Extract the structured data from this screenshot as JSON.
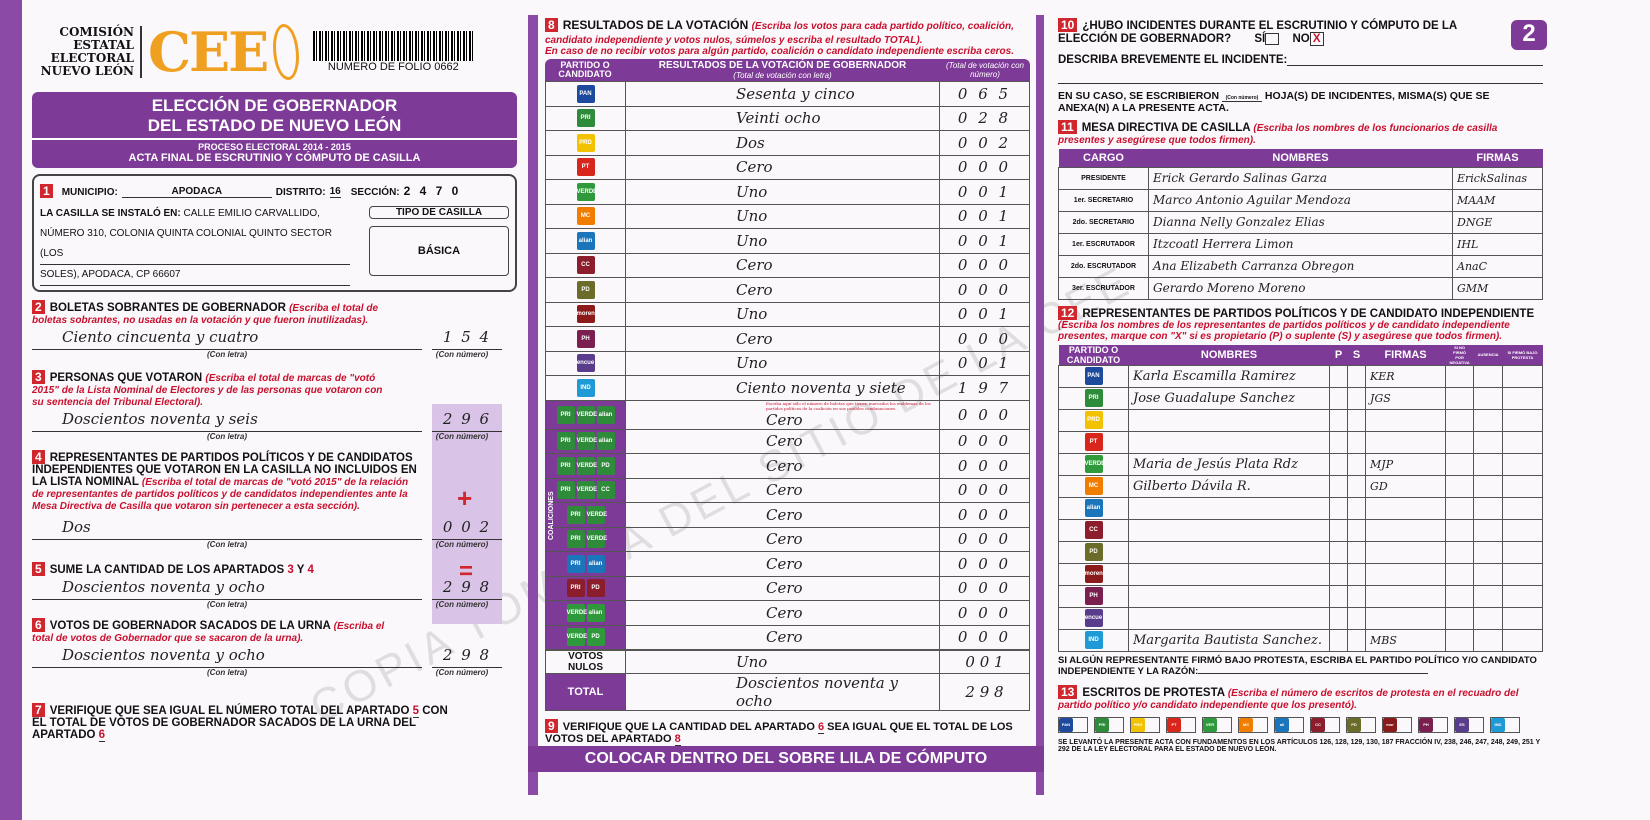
{
  "header": {
    "org": "COMISIÓN ESTATAL ELECTORAL NUEVO LEÓN",
    "logo": "CEE",
    "folio": "NUMERO DE FOLIO 0662",
    "title1": "ELECCIÓN DE GOBERNADOR",
    "title2": "DEL ESTADO DE NUEVO LEÓN",
    "process": "PROCESO ELECTORAL 2014 - 2015",
    "acta": "ACTA FINAL DE ESCRUTINIO Y CÓMPUTO DE CASILLA",
    "page_number": "2"
  },
  "s1": {
    "n": "1",
    "municipio_label": "MUNICIPIO:",
    "municipio": "APODACA",
    "distrito_label": "DISTRITO:",
    "distrito": "16",
    "seccion_label": "SECCIÓN:",
    "seccion": "2 4 7 0",
    "instalo_label": "LA CASILLA SE INSTALÓ EN:",
    "address1": "CALLE EMILIO CARVALLIDO,",
    "address2": "NÚMERO 310, COLONIA QUINTA COLONIAL QUINTO SECTOR (LOS",
    "address3": "SOLES), APODACA, CP 66607",
    "tipo_label": "TIPO DE CASILLA",
    "tipo": "BÁSICA"
  },
  "labels": {
    "con_letra": "(Con letra)",
    "con_numero": "(Con número)"
  },
  "s2": {
    "n": "2",
    "title": "BOLETAS SOBRANTES DE GOBERNADOR",
    "hint": "(Escriba el total de boletas sobrantes, no usadas en la votación y que fueron inutilizadas).",
    "letra": "Ciento cincuenta y cuatro",
    "numero": "1 5 4"
  },
  "s3": {
    "n": "3",
    "title": "PERSONAS QUE VOTARON",
    "hint": "(Escriba el total de marcas de \"votó 2015\" de la Lista Nominal de Electores y de las personas que votaron con su sentencia del Tribunal Electoral).",
    "letra": "Doscientos noventa y seis",
    "numero": "2 9 6"
  },
  "s4": {
    "n": "4",
    "title": "REPRESENTANTES DE PARTIDOS POLÍTICOS Y DE CANDIDATOS INDEPENDIENTES QUE VOTARON EN LA CASILLA NO INCLUIDOS EN LA LISTA NOMINAL",
    "hint": "(Escriba el total de marcas de \"votó 2015\" de la relación de representantes de partidos políticos y de candidatos independientes ante la Mesa Directiva de Casilla que votaron sin pertenecer a esta sección).",
    "letra": "Dos",
    "numero": "0 0 2",
    "plus": "+"
  },
  "s5": {
    "n": "5",
    "title": "SUME LA CANTIDAD DE LOS APARTADOS",
    "a": "3",
    "y": "Y",
    "b": "4",
    "letra": "Doscientos noventa y ocho",
    "numero": "2 9 8",
    "eq": "="
  },
  "s6": {
    "n": "6",
    "title": "VOTOS DE GOBERNADOR SACADOS DE LA URNA",
    "hint": "(Escriba el total de votos de Gobernador que se sacaron de la urna).",
    "letra": "Doscientos noventa y ocho",
    "numero": "2 9 8"
  },
  "s7": {
    "n": "7",
    "text": "VERIFIQUE QUE SEA IGUAL EL NÚMERO TOTAL DEL APARTADO",
    "a": "5",
    "text2": "CON EL TOTAL DE VOTOS DE GOBERNADOR SACADOS DE LA URNA DEL APARTADO",
    "b": "6"
  },
  "s8": {
    "n": "8",
    "title": "RESULTADOS DE LA VOTACIÓN",
    "hint": "(Escriba los votos para cada partido político, coalición, candidato independiente y votos nulos, súmelos y escriba el resultado TOTAL).",
    "hint2": "En caso de no recibir votos para algún partido, coalición o candidato independiente escriba ceros.",
    "col1": "PARTIDO O CANDIDATO",
    "col2": "RESULTADOS DE LA VOTACIÓN DE GOBERNADOR",
    "col2b": "(Total de votación con letra)",
    "col3": "(Total de votación con número)",
    "coalition_note": "Escriba aquí sólo el número de boletas que tienen marcados los emblemas de los partidos políticos de la coalición en sus posibles combinaciones.",
    "coalitions_label": "COALICIONES",
    "rows": [
      {
        "party": "PAN",
        "color": "#1d4a9c",
        "letra": "Sesenta y cinco",
        "numero": "0 6 5"
      },
      {
        "party": "PRI",
        "color": "#2e8b3a",
        "letra": "Veinti ocho",
        "numero": "0 2 8"
      },
      {
        "party": "PRD",
        "color": "#f2c200",
        "letra": "Dos",
        "numero": "0 0 2"
      },
      {
        "party": "PT",
        "color": "#d8261c",
        "letra": "Cero",
        "numero": "0 0 0"
      },
      {
        "party": "VERDE",
        "color": "#2f9a3b",
        "letra": "Uno",
        "numero": "0 0 1"
      },
      {
        "party": "MC",
        "color": "#f07d00",
        "letra": "Uno",
        "numero": "0 0 1"
      },
      {
        "party": "alianza",
        "color": "#1b75bb",
        "letra": "Uno",
        "numero": "0 0 1"
      },
      {
        "party": "CC",
        "color": "#8b1d2c",
        "letra": "Cero",
        "numero": "0 0 0"
      },
      {
        "party": "PD",
        "color": "#6b6b2a",
        "letra": "Cero",
        "numero": "0 0 0"
      },
      {
        "party": "morena",
        "color": "#8b1a1a",
        "letra": "Uno",
        "numero": "0 0 1"
      },
      {
        "party": "PH",
        "color": "#7a1f4f",
        "letra": "Cero",
        "numero": "0 0 0"
      },
      {
        "party": "encuentro",
        "color": "#5a3c8c",
        "letra": "Uno",
        "numero": "0 0 1"
      },
      {
        "party": "IND",
        "color": "#1e9ad6",
        "letra": "Ciento noventa y siete",
        "numero": "1 9 7"
      },
      {
        "party": "PRI-VERDE-alianza",
        "color": "#2e8b3a",
        "letra": "Cero",
        "numero": "0 0 0",
        "coal": true
      },
      {
        "party": "PRI-VERDE-alianza",
        "color": "#2e8b3a",
        "letra": "Cero",
        "numero": "0 0 0",
        "coal": true
      },
      {
        "party": "PRI-VERDE-PD",
        "color": "#2e8b3a",
        "letra": "Cero",
        "numero": "0 0 0",
        "coal": true
      },
      {
        "party": "PRI-VERDE-CC",
        "color": "#2e8b3a",
        "letra": "Cero",
        "numero": "0 0 0",
        "coal": true
      },
      {
        "party": "PRI-VERDE",
        "color": "#2e8b3a",
        "letra": "Cero",
        "numero": "0 0 0",
        "coal": true
      },
      {
        "party": "PRI-VERDE",
        "color": "#2e8b3a",
        "letra": "Cero",
        "numero": "0 0 0",
        "coal": true
      },
      {
        "party": "PRI-alianza",
        "color": "#1b75bb",
        "letra": "Cero",
        "numero": "0 0 0",
        "coal": true
      },
      {
        "party": "PRI-PD",
        "color": "#8b1d2c",
        "letra": "Cero",
        "numero": "0 0 0",
        "coal": true
      },
      {
        "party": "VERDE-alianza",
        "color": "#2f9a3b",
        "letra": "Cero",
        "numero": "0 0 0",
        "coal": true
      },
      {
        "party": "VERDE-PD",
        "color": "#2f9a3b",
        "letra": "Cero",
        "numero": "0 0 0",
        "coal": true
      }
    ],
    "nulos_label": "VOTOS NULOS",
    "nulos_letra": "Uno",
    "nulos_numero": "0 0 1",
    "total_label": "TOTAL",
    "total_letra": "Doscientos noventa y ocho",
    "total_numero": "2 9 8"
  },
  "s9": {
    "n": "9",
    "text": "VERIFIQUE QUE LA CANTIDAD DEL APARTADO",
    "a": "6",
    "text2": "SEA IGUAL QUE EL TOTAL DE LOS VOTOS DEL APARTADO",
    "b": "8"
  },
  "footer": "COLOCAR DENTRO DEL SOBRE LILA DE CÓMPUTO",
  "watermark": "COPIA TOMADA DEL SITIO DE LA CEE",
  "s10": {
    "n": "10",
    "title": "¿HUBO INCIDENTES DURANTE EL ESCRUTINIO Y CÓMPUTO DE LA ELECCIÓN DE GOBERNADOR?",
    "si": "SÍ",
    "no": "NO",
    "no_mark": "X",
    "describe": "DESCRIBA BREVEMENTE EL INCIDENTE:",
    "hojas1": "EN SU CASO, SE ESCRIBIERON",
    "hojas_lbl": "(Con número)",
    "hojas2": "HOJA(S) DE INCIDENTES, MISMA(S) QUE SE ANEXA(N) A LA PRESENTE ACTA."
  },
  "s11": {
    "n": "11",
    "title": "MESA DIRECTIVA DE CASILLA",
    "hint": "(Escriba los nombres de los funcionarios de casilla presentes y asegúrese que todos firmen).",
    "cols": [
      "CARGO",
      "NOMBRES",
      "FIRMAS"
    ],
    "rows": [
      {
        "cargo": "PRESIDENTE",
        "nombre": "Erick Gerardo Salinas Garza",
        "firma": "ErickSalinas"
      },
      {
        "cargo": "1er. SECRETARIO",
        "nombre": "Marco Antonio Aguilar Mendoza",
        "firma": "MAAM"
      },
      {
        "cargo": "2do. SECRETARIO",
        "nombre": "Dianna Nelly Gonzalez Elias",
        "firma": "DNGE"
      },
      {
        "cargo": "1er. ESCRUTADOR",
        "nombre": "Itzcoatl Herrera Limon",
        "firma": "IHL"
      },
      {
        "cargo": "2do. ESCRUTADOR",
        "nombre": "Ana Elizabeth Carranza Obregon",
        "firma": "AnaC"
      },
      {
        "cargo": "3er. ESCRUTADOR",
        "nombre": "Gerardo Moreno Moreno",
        "firma": "GMM"
      }
    ]
  },
  "s12": {
    "n": "12",
    "title": "REPRESENTANTES DE PARTIDOS POLÍTICOS Y DE CANDIDATO INDEPENDIENTE",
    "hint": "(Escriba los nombres de los representantes de partidos políticos y de candidato independiente presentes, marque con \"X\" si es propietario (P) o suplente (S) y asegúrese que todos firmen).",
    "cols": [
      "PARTIDO O CANDIDATO",
      "NOMBRES",
      "P",
      "S",
      "FIRMAS"
    ],
    "marque": "Marque con \"X\"",
    "negativa": "SI NO FIRMÓ POR NEGATIVA",
    "ausencia": "AUSENCIA",
    "protesta": "SI FIRMÓ BAJO PROTESTA",
    "rows": [
      {
        "party": "PAN",
        "color": "#1d4a9c",
        "nombre": "Karla Escamilla Ramirez",
        "firma": "KER"
      },
      {
        "party": "PRI",
        "color": "#2e8b3a",
        "nombre": "Jose Guadalupe Sanchez",
        "firma": "JGS"
      },
      {
        "party": "PRD",
        "color": "#f2c200",
        "nombre": "",
        "firma": ""
      },
      {
        "party": "PT",
        "color": "#d8261c",
        "nombre": "",
        "firma": ""
      },
      {
        "party": "VERDE",
        "color": "#2f9a3b",
        "nombre": "Maria de Jesús Plata Rdz",
        "firma": "MJP"
      },
      {
        "party": "MC",
        "color": "#f07d00",
        "nombre": "Gilberto Dávila R.",
        "firma": "GD"
      },
      {
        "party": "alianza",
        "color": "#1b75bb",
        "nombre": "",
        "firma": ""
      },
      {
        "party": "CC",
        "color": "#8b1d2c",
        "nombre": "",
        "firma": ""
      },
      {
        "party": "PD",
        "color": "#6b6b2a",
        "nombre": "",
        "firma": ""
      },
      {
        "party": "morena",
        "color": "#8b1a1a",
        "nombre": "",
        "firma": ""
      },
      {
        "party": "PH",
        "color": "#7a1f4f",
        "nombre": "",
        "firma": ""
      },
      {
        "party": "encuentro",
        "color": "#5a3c8c",
        "nombre": "",
        "firma": ""
      },
      {
        "party": "IND",
        "color": "#1e9ad6",
        "nombre": "Margarita Bautista Sanchez.",
        "firma": "MBS"
      }
    ],
    "protesta_text": "SI ALGÚN REPRESENTANTE FIRMÓ BAJO PROTESTA, ESCRIBA EL PARTIDO POLÍTICO Y/O CANDIDATO INDEPENDIENTE Y LA RAZÓN:"
  },
  "s13": {
    "n": "13",
    "title": "ESCRITOS DE PROTESTA",
    "hint": "(Escriba el número de escritos de protesta en el recuadro del partido político y/o candidato independiente que los presentó).",
    "parties": [
      {
        "p": "PAN",
        "c": "#1d4a9c"
      },
      {
        "p": "PRI",
        "c": "#2e8b3a"
      },
      {
        "p": "PRD",
        "c": "#f2c200"
      },
      {
        "p": "PT",
        "c": "#d8261c"
      },
      {
        "p": "VERDE",
        "c": "#2f9a3b"
      },
      {
        "p": "MC",
        "c": "#f07d00"
      },
      {
        "p": "alianza",
        "c": "#1b75bb"
      },
      {
        "p": "CC",
        "c": "#8b1d2c"
      },
      {
        "p": "PD",
        "c": "#6b6b2a"
      },
      {
        "p": "morena",
        "c": "#8b1a1a"
      },
      {
        "p": "PH",
        "c": "#7a1f4f"
      },
      {
        "p": "ES",
        "c": "#5a3c8c"
      },
      {
        "p": "IND",
        "c": "#1e9ad6"
      }
    ],
    "legal": "SE LEVANTÓ LA PRESENTE ACTA CON FUNDAMENTOS EN LOS ARTÍCULOS 126, 128, 129, 130, 187 FRACCIÓN IV, 238, 246, 247, 248, 249, 251 Y 292 DE LA LEY ELECTORAL PARA EL ESTADO DE NUEVO LEÓN."
  },
  "colors": {
    "purple": "#7d3a97",
    "red": "#c8102e",
    "orange": "#f0a020"
  }
}
